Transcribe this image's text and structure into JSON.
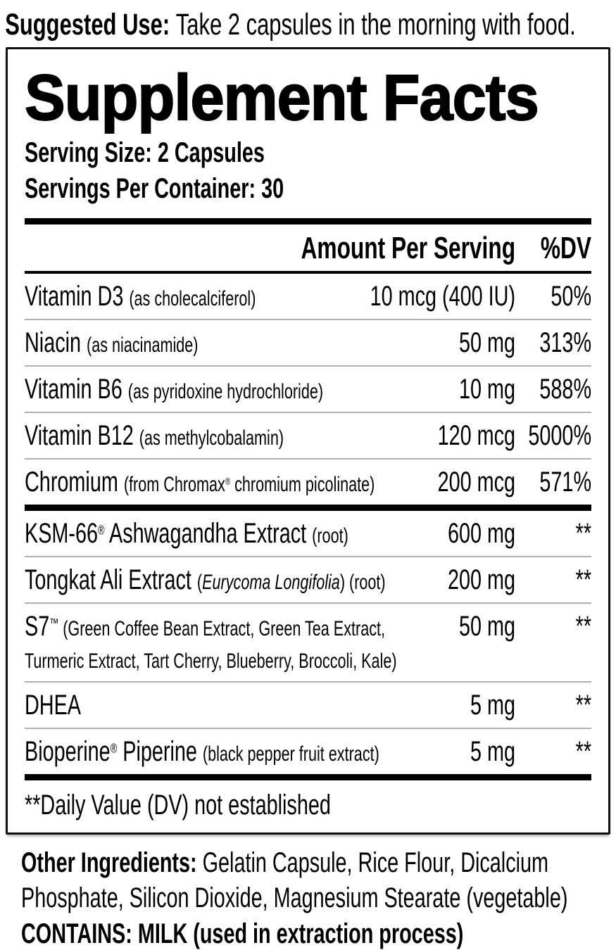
{
  "colors": {
    "text": "#000000",
    "background": "#ffffff",
    "separator_thin": "#b0b0b0",
    "bar": "#000000"
  },
  "suggested_use": {
    "segments": [
      {
        "text": "Suggested Use: ",
        "style": "bold"
      },
      {
        "text": "Take 2 capsules in the morning with food.",
        "style": "main"
      }
    ]
  },
  "panel": {
    "title": "Supplement Facts",
    "serving_size": "Serving Size: 2 Capsules",
    "servings_per_container": "Servings Per Container: 30",
    "header": {
      "amount": "Amount Per Serving",
      "dv": "%DV"
    },
    "rows": [
      {
        "name_segments": [
          {
            "text": "Vitamin D3 ",
            "style": "main"
          },
          {
            "text": "(as cholecalciferol)",
            "style": "sub"
          }
        ],
        "amount": "10 mcg (400 IU)",
        "dv": "50%"
      },
      {
        "name_segments": [
          {
            "text": "Niacin ",
            "style": "main"
          },
          {
            "text": "(as niacinamide)",
            "style": "sub"
          }
        ],
        "amount": "50 mg",
        "dv": "313%"
      },
      {
        "name_segments": [
          {
            "text": "Vitamin B6 ",
            "style": "main"
          },
          {
            "text": "(as pyridoxine hydrochloride)",
            "style": "sub"
          }
        ],
        "amount": "10 mg",
        "dv": "588%"
      },
      {
        "name_segments": [
          {
            "text": "Vitamin B12 ",
            "style": "main"
          },
          {
            "text": "(as methylcobalamin)",
            "style": "sub"
          }
        ],
        "amount": "120 mcg",
        "dv": "5000%"
      },
      {
        "name_segments": [
          {
            "text": "Chromium ",
            "style": "main"
          },
          {
            "text": "(from Chromax",
            "style": "sub"
          },
          {
            "text": "®",
            "style": "subsup"
          },
          {
            "text": " chromium picolinate)",
            "style": "sub"
          }
        ],
        "amount": "200 mcg",
        "dv": "571%"
      },
      {
        "name_segments": [
          {
            "text": "KSM-66",
            "style": "main"
          },
          {
            "text": "®",
            "style": "sup"
          },
          {
            "text": " Ashwagandha Extract ",
            "style": "main"
          },
          {
            "text": "(root)",
            "style": "sub"
          }
        ],
        "amount": "600 mg",
        "dv": "**"
      },
      {
        "name_segments": [
          {
            "text": "Tongkat Ali Extract ",
            "style": "main"
          },
          {
            "text": "(",
            "style": "sub"
          },
          {
            "text": "Eurycoma Longifolia",
            "style": "subitalic"
          },
          {
            "text": ") (root)",
            "style": "sub"
          }
        ],
        "amount": "200 mg",
        "dv": "**"
      },
      {
        "name_segments": [
          {
            "text": "S7",
            "style": "main"
          },
          {
            "text": "™",
            "style": "sup"
          },
          {
            "text": " (Green Coffee Bean Extract, Green Tea Extract,",
            "style": "sub"
          },
          {
            "style": "br"
          },
          {
            "text": "Turmeric Extract, Tart Cherry, Blueberry, Broccoli, Kale)",
            "style": "sub"
          }
        ],
        "amount": "50 mg",
        "dv": "**"
      },
      {
        "name_segments": [
          {
            "text": "DHEA",
            "style": "main"
          }
        ],
        "amount": "5 mg",
        "dv": "**"
      },
      {
        "name_segments": [
          {
            "text": "Bioperine",
            "style": "main"
          },
          {
            "text": "®",
            "style": "sup"
          },
          {
            "text": " Piperine ",
            "style": "main"
          },
          {
            "text": "(black pepper fruit extract)",
            "style": "sub"
          }
        ],
        "amount": "5 mg",
        "dv": "**"
      }
    ],
    "footnote": "**Daily Value (DV) not established"
  },
  "footer": {
    "other_ingredients_segments": [
      {
        "text": "Other Ingredients: ",
        "style": "bold"
      },
      {
        "text": "Gelatin Capsule, Rice Flour, Dicalcium",
        "style": "main"
      },
      {
        "style": "br"
      },
      {
        "text": "Phosphate, Silicon Dioxide, Magnesium Stearate (vegetable)",
        "style": "main"
      }
    ],
    "contains": "CONTAINS: MILK (used in extraction process)"
  }
}
